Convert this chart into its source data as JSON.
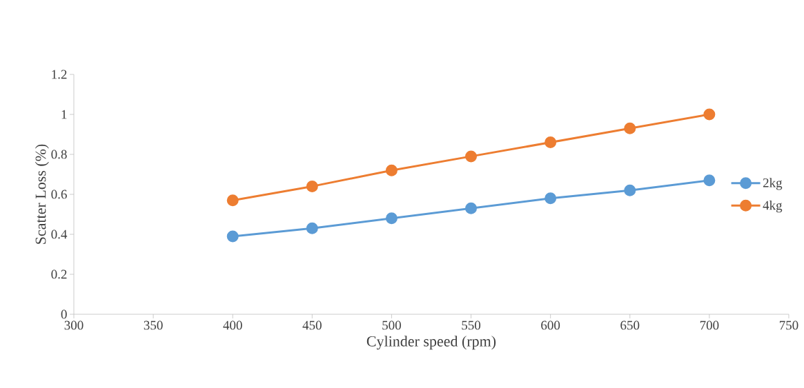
{
  "chart_data": {
    "type": "line",
    "xlabel": "Cylinder speed (rpm)",
    "ylabel": "Scatter Loss (%)",
    "x": [
      400,
      450,
      500,
      550,
      600,
      650,
      700
    ],
    "series": [
      {
        "name": "2kg",
        "color": "#5b9bd5",
        "values": [
          0.39,
          0.43,
          0.48,
          0.53,
          0.58,
          0.62,
          0.67
        ]
      },
      {
        "name": "4kg",
        "color": "#ed7d31",
        "values": [
          0.57,
          0.64,
          0.72,
          0.79,
          0.86,
          0.93,
          1.0
        ]
      }
    ],
    "xlim": [
      300,
      750
    ],
    "xticks": [
      300,
      350,
      400,
      450,
      500,
      550,
      600,
      650,
      700,
      750
    ],
    "ylim": [
      0,
      1.2
    ],
    "yticks": [
      0,
      0.2,
      0.4,
      0.6,
      0.8,
      1,
      1.2
    ],
    "grid": false,
    "legend": "right",
    "marker": "circle",
    "line_style": "solid"
  }
}
